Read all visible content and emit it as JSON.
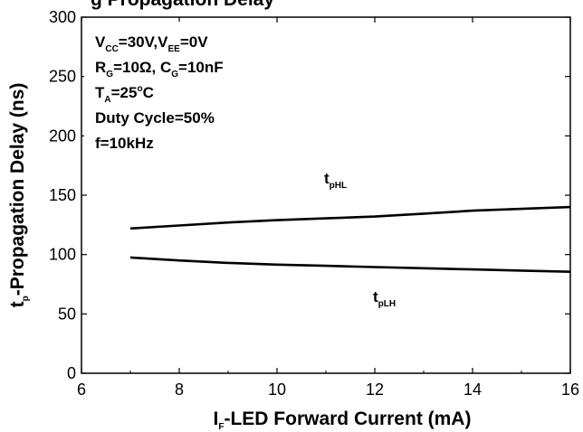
{
  "chart_data": {
    "type": "line",
    "title": "t_p-Propagation Delay vs I_F",
    "title_visible_part": "g  Propagation Delay",
    "xlabel": {
      "prefix": "I",
      "sub": "F",
      "rest": "-LED Forward Current (mA)"
    },
    "ylabel": {
      "prefix": "t",
      "sub": "p",
      "rest": "-Propagation Delay (ns)"
    },
    "xlim": [
      6,
      16
    ],
    "ylim": [
      0,
      300
    ],
    "x_ticks": [
      6,
      8,
      10,
      12,
      14,
      16
    ],
    "y_ticks": [
      0,
      50,
      100,
      150,
      200,
      250,
      300
    ],
    "grid": false,
    "conditions": [
      {
        "parts": [
          [
            "V",
            ""
          ],
          [
            "CC",
            "sub"
          ],
          [
            "=30V,V",
            ""
          ],
          [
            "EE",
            "sub"
          ],
          [
            "=0V",
            ""
          ]
        ]
      },
      {
        "parts": [
          [
            "R",
            ""
          ],
          [
            "G",
            "sub"
          ],
          [
            "=10Ω, C",
            ""
          ],
          [
            "G",
            "sub"
          ],
          [
            "=10nF",
            ""
          ]
        ]
      },
      {
        "parts": [
          [
            "T",
            ""
          ],
          [
            "A",
            "sub"
          ],
          [
            "=25",
            ""
          ],
          [
            "o",
            "sup"
          ],
          [
            "C",
            ""
          ]
        ]
      },
      {
        "parts": [
          [
            "Duty Cycle=50%",
            ""
          ]
        ]
      },
      {
        "parts": [
          [
            "f=10kHz",
            ""
          ]
        ]
      }
    ],
    "series": [
      {
        "name": "tpHL",
        "label": {
          "main": "t",
          "sub": "pHL"
        },
        "label_at": [
          11,
          160
        ],
        "x": [
          7,
          8,
          9,
          10,
          11,
          12,
          13,
          14,
          15,
          16
        ],
        "values": [
          122,
          124.5,
          127,
          129,
          130.5,
          132,
          134.5,
          137,
          138.5,
          140
        ]
      },
      {
        "name": "tpLH",
        "label": {
          "main": "t",
          "sub": "pLH"
        },
        "label_at": [
          12,
          60
        ],
        "x": [
          7,
          8,
          9,
          10,
          11,
          12,
          13,
          14,
          15,
          16
        ],
        "values": [
          97.5,
          95,
          93,
          91.5,
          90.5,
          89.5,
          88.5,
          87.5,
          86.5,
          85.5
        ]
      }
    ]
  }
}
